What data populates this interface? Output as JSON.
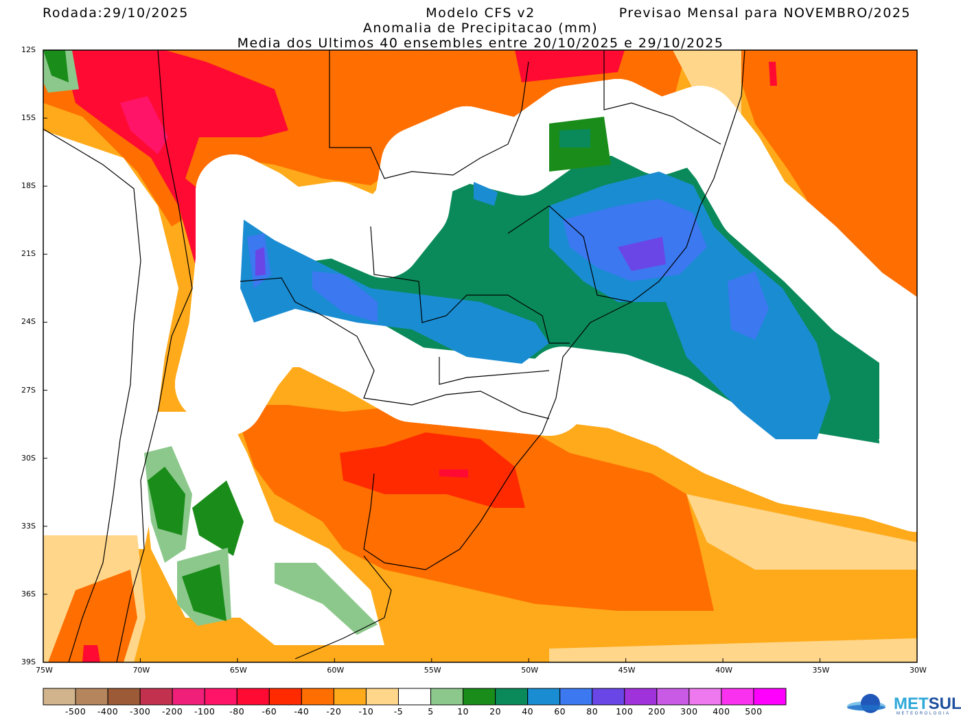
{
  "header": {
    "run_date": "Rodada:29/10/2025",
    "model": "Modelo CFS v2",
    "forecast": "Previsao Mensal para NOVEMBRO/2025",
    "variable": "Anomalia de Precipitacao (mm)",
    "ensemble": "Media dos Ultimos 40 ensembles entre 20/10/2025 e 29/10/2025"
  },
  "map": {
    "lat_ticks": [
      "12S",
      "15S",
      "18S",
      "21S",
      "24S",
      "27S",
      "30S",
      "33S",
      "36S",
      "39S"
    ],
    "lon_ticks": [
      "75W",
      "70W",
      "65W",
      "60W",
      "55W",
      "50W",
      "45W",
      "40W",
      "35W",
      "30W"
    ],
    "lat_range": [
      -39,
      -12
    ],
    "lon_range": [
      -75,
      -30
    ]
  },
  "colorbar": {
    "labels": [
      "-500",
      "-400",
      "-300",
      "-200",
      "-100",
      "-80",
      "-60",
      "-40",
      "-20",
      "-10",
      "-5",
      "5",
      "10",
      "20",
      "40",
      "60",
      "80",
      "100",
      "200",
      "300",
      "400",
      "500"
    ],
    "colors": [
      "#d2b48c",
      "#b5865e",
      "#9c5a36",
      "#c2324f",
      "#f0207a",
      "#ff1468",
      "#ff0a32",
      "#ff2a00",
      "#ff6e00",
      "#ffaa1a",
      "#ffd68a",
      "#ffffff",
      "#8cc88c",
      "#1a8c1a",
      "#0a8a5a",
      "#1a8cd2",
      "#3c78f0",
      "#6a46e6",
      "#a032dc",
      "#c85ae6",
      "#ee78ee",
      "#fa32f0",
      "#ff00ff"
    ]
  },
  "logo": {
    "text_a": "MET",
    "text_b": "SUL",
    "sub": "METEOROLOGIA"
  }
}
